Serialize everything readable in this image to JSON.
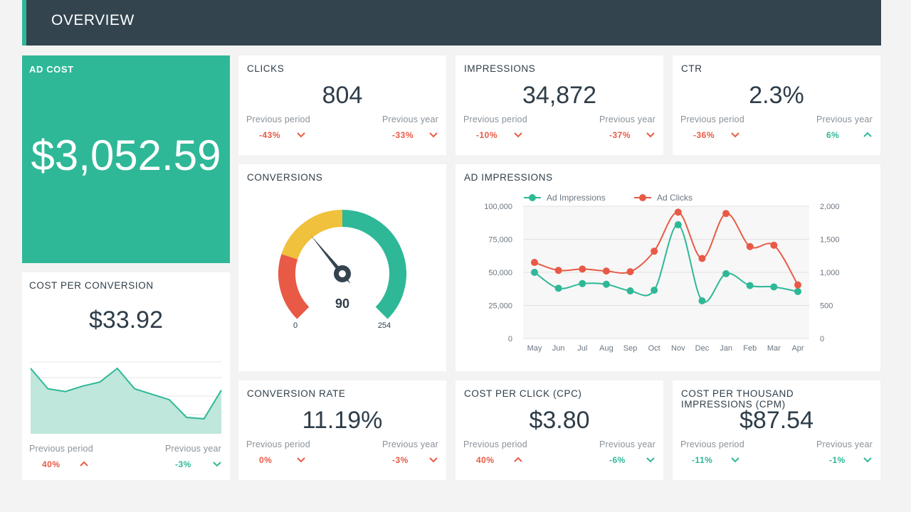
{
  "header": {
    "title": "OVERVIEW"
  },
  "ad_cost": {
    "label": "AD COST",
    "value": "$3,052.59"
  },
  "clicks": {
    "label": "CLICKS",
    "value": "804",
    "prev_period_label": "Previous period",
    "prev_period": "-43%",
    "prev_year_label": "Previous year",
    "prev_year": "-33%"
  },
  "impressions": {
    "label": "IMPRESSIONS",
    "value": "34,872",
    "prev_period_label": "Previous period",
    "prev_period": "-10%",
    "prev_year_label": "Previous year",
    "prev_year": "-37%"
  },
  "ctr": {
    "label": "CTR",
    "value": "2.3%",
    "prev_period_label": "Previous period",
    "prev_period": "-36%",
    "prev_year_label": "Previous year",
    "prev_year": "6%"
  },
  "cost_per_conversion": {
    "label": "COST PER CONVERSION",
    "value": "$33.92",
    "prev_period_label": "Previous period",
    "prev_period": "40%",
    "prev_year_label": "Previous year",
    "prev_year": "-3%"
  },
  "conversions": {
    "label": "CONVERSIONS",
    "value": "90",
    "min": "0",
    "max": "254"
  },
  "conversion_rate": {
    "label": "CONVERSION RATE",
    "value": "11.19%",
    "prev_period_label": "Previous period",
    "prev_period": "0%",
    "prev_year_label": "Previous year",
    "prev_year": "-3%"
  },
  "cpc": {
    "label": "COST PER CLICK (CPC)",
    "value": "$3.80",
    "prev_period_label": "Previous period",
    "prev_period": "40%",
    "prev_year_label": "Previous year",
    "prev_year": "-6%"
  },
  "cpm": {
    "label": "COST PER THOUSAND IMPRESSIONS (CPM)",
    "value": "$87.54",
    "prev_period_label": "Previous period",
    "prev_period": "-11%",
    "prev_year_label": "Previous year",
    "prev_year": "-1%"
  },
  "ad_impressions": {
    "label": "AD IMPRESSIONS"
  },
  "colors": {
    "teal": "#2eb897",
    "red": "#e85a46",
    "yellow": "#f0c13d",
    "dark": "#34444f"
  },
  "chart_data": [
    {
      "type": "line",
      "title": "AD IMPRESSIONS",
      "categories": [
        "May",
        "Jun",
        "Jul",
        "Aug",
        "Sep",
        "Oct",
        "Nov",
        "Dec",
        "Jan",
        "Feb",
        "Mar",
        "Apr"
      ],
      "series": [
        {
          "name": "Ad Impressions",
          "axis": "left",
          "color": "#2eb897",
          "values": [
            50000,
            38000,
            41500,
            41000,
            36000,
            36500,
            86000,
            28500,
            49000,
            40000,
            39000,
            35500
          ]
        },
        {
          "name": "Ad Clicks",
          "axis": "right",
          "color": "#e85a46",
          "values": [
            1150,
            1030,
            1050,
            1020,
            1010,
            1320,
            1910,
            1210,
            1890,
            1390,
            1410,
            810
          ]
        }
      ],
      "y_left": {
        "ticks": [
          "0",
          "25,000",
          "50,000",
          "75,000",
          "100,000"
        ],
        "ylim": [
          0,
          100000
        ]
      },
      "y_right": {
        "ticks": [
          "0",
          "500",
          "1,000",
          "1,500",
          "2,000"
        ],
        "ylim": [
          0,
          2000
        ]
      },
      "grid": true,
      "legend": "top-left"
    },
    {
      "type": "area",
      "title": "COST PER CONVERSION",
      "values": [
        48,
        33,
        31,
        35,
        38,
        48,
        33,
        29,
        25,
        12,
        11,
        32
      ],
      "ylim": [
        0,
        60
      ],
      "grid": true
    },
    {
      "type": "gauge",
      "title": "CONVERSIONS",
      "value": 90,
      "min": 0,
      "max": 254
    }
  ]
}
